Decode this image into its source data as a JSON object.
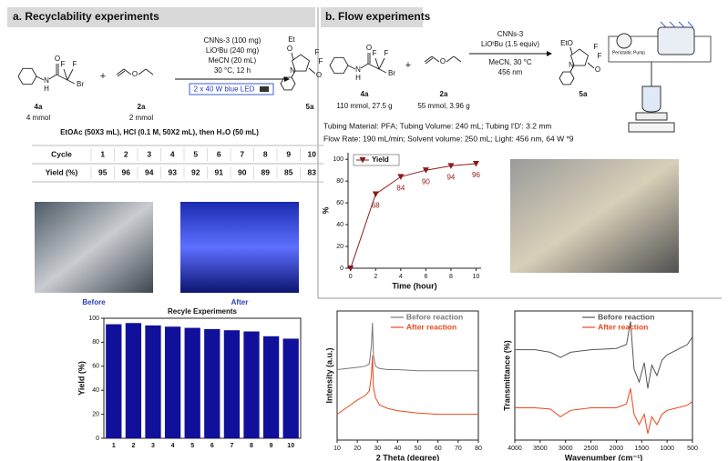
{
  "panel_a": {
    "title": "a. Recyclability experiments",
    "scheme": {
      "reactant_1": {
        "label": "4a",
        "amount": "4 mmol",
        "atoms": [
          "N",
          "H",
          "O",
          "F",
          "F",
          "Br"
        ]
      },
      "plus": "+",
      "reactant_2": {
        "label": "2a",
        "amount": "2 mmol",
        "atoms": [
          "O"
        ]
      },
      "conditions": [
        "CNNs-3 (100 mg)",
        "LiOᵗBu (240 mg)",
        "MeCN (20 mL)",
        "30 °C, 12 h"
      ],
      "light": "2 x 40 W blue LED",
      "product": {
        "label": "5a",
        "atoms": [
          "Et",
          "O",
          "N",
          "O",
          "F",
          "F"
        ]
      }
    },
    "workup": "EtOAc (50X3 mL), HCl (0.1 M, 50X2 mL), then H₂O (50 mL)",
    "table": {
      "rows": [
        [
          "Cycle",
          1,
          2,
          3,
          4,
          5,
          6,
          7,
          8,
          9,
          10
        ],
        [
          "Yield (%)",
          95,
          96,
          94,
          93,
          92,
          91,
          90,
          89,
          85,
          83
        ]
      ]
    },
    "photos": [
      "Before",
      "After"
    ]
  },
  "panel_b": {
    "title": "b. Flow experiments",
    "scheme": {
      "reactant_1": {
        "label": "4a",
        "amount": "110 mmol, 27.5 g",
        "atoms": [
          "N",
          "H",
          "O",
          "F",
          "F",
          "Br"
        ]
      },
      "plus": "+",
      "reactant_2": {
        "label": "2a",
        "amount": "55 mmol, 3.96 g",
        "atoms": [
          "O"
        ]
      },
      "conditions_above": [
        "CNNs-3",
        "LiOᵗBu (1.5 equiv)"
      ],
      "conditions_below": [
        "MeCN, 30 °C",
        "456 nm"
      ],
      "product": {
        "label": "5a",
        "atoms": [
          "EtO",
          "N",
          "O",
          "F",
          "F"
        ]
      },
      "pump": "Peristaltic Pump"
    },
    "notes": [
      "Tubing Material: PFA; Tubing Volume: 240 mL; Tubing I'D': 3.2 mm",
      "Flow Rate: 190 mL/min; Solvent volume: 250 mL; Light: 456 nm, 64 W *9"
    ]
  },
  "chart_data": [
    {
      "type": "line",
      "x_label": "Time (hour)",
      "y_label": "%",
      "x": [
        0,
        2,
        4,
        6,
        8,
        10
      ],
      "series": [
        {
          "name": "Yield",
          "color": "#8b1a1a",
          "marker": "triangle-down",
          "values": [
            0,
            68,
            84,
            90,
            94,
            96
          ],
          "value_labels": [
            null,
            "68",
            "84",
            "90",
            "94",
            "96"
          ]
        }
      ],
      "xlim": [
        -0.2,
        10.4
      ],
      "xticks": [
        0,
        2,
        4,
        6,
        8,
        10
      ],
      "ylim": [
        0,
        106
      ],
      "yticks": [
        0,
        20,
        40,
        60,
        80,
        100
      ],
      "legend": "upper left"
    },
    {
      "type": "bar",
      "title": "Recyle Experiments",
      "y_label": "Yield (%)",
      "categories": [
        "1",
        "2",
        "3",
        "4",
        "5",
        "6",
        "7",
        "8",
        "9",
        "10"
      ],
      "values": [
        95,
        96,
        94,
        93,
        92,
        91,
        90,
        89,
        85,
        83
      ],
      "color": "#10109a",
      "ylim": [
        0,
        100
      ],
      "yticks": [
        0,
        20,
        40,
        60,
        80,
        100
      ]
    },
    {
      "type": "line",
      "x_label": "2 Theta (degree)",
      "y_label": "Intensity (a.u.)",
      "x": [
        10,
        15,
        20,
        24,
        26,
        27,
        27.5,
        28,
        29,
        31,
        35,
        40,
        50,
        60,
        70,
        80
      ],
      "series": [
        {
          "name": "Before reaction",
          "color": "#777777",
          "values": [
            60,
            61,
            62,
            63,
            65,
            80,
            100,
            72,
            63,
            61,
            60,
            60,
            59,
            59,
            59,
            59
          ]
        },
        {
          "name": "After reaction",
          "color": "#e8471c",
          "values": [
            22,
            28,
            34,
            38,
            42,
            55,
            72,
            45,
            36,
            30,
            27,
            25,
            23,
            22,
            22,
            22
          ]
        }
      ],
      "xlim": [
        10,
        80
      ],
      "xticks": [
        10,
        20,
        30,
        40,
        50,
        60,
        70,
        80
      ],
      "ylim": [
        0,
        110
      ],
      "legend": "upper right"
    },
    {
      "type": "line",
      "x_label": "Wavenumber (cm⁻¹)",
      "y_label": "Transmittance (%)",
      "x": [
        4000,
        3600,
        3300,
        3100,
        2900,
        2500,
        2000,
        1800,
        1720,
        1650,
        1550,
        1450,
        1380,
        1300,
        1200,
        1100,
        1000,
        800,
        600,
        500
      ],
      "series": [
        {
          "name": "Before reaction",
          "color": "#555555",
          "values": [
            70,
            70,
            68,
            64,
            68,
            70,
            71,
            74,
            92,
            55,
            45,
            60,
            40,
            58,
            50,
            62,
            66,
            70,
            74,
            80
          ]
        },
        {
          "name": "After reaction",
          "color": "#e8471c",
          "values": [
            25,
            25,
            24,
            18,
            23,
            25,
            25,
            28,
            40,
            20,
            12,
            20,
            5,
            18,
            12,
            20,
            23,
            25,
            27,
            30
          ]
        }
      ],
      "xlim": [
        4000,
        500
      ],
      "xticks": [
        4000,
        3500,
        3000,
        2500,
        2000,
        1500,
        1000,
        500
      ],
      "ylim": [
        0,
        100
      ],
      "legend": "upper right"
    }
  ]
}
